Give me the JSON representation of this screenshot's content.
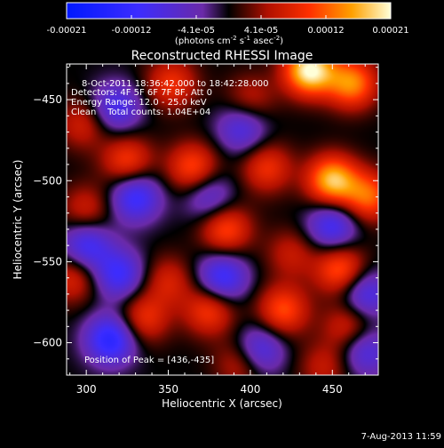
{
  "chart_data": {
    "type": "heatmap",
    "title": "Reconstructed RHESSI Image",
    "xlabel": "Heliocentric X (arcsec)",
    "ylabel": "Heliocentric Y (arcsec)",
    "xlim": [
      288,
      478
    ],
    "ylim": [
      -620,
      -428
    ],
    "xticks": [
      300,
      350,
      400,
      450
    ],
    "yticks": [
      -450,
      -500,
      -550,
      -600
    ],
    "colorbar": {
      "ticks": [
        "-0.00021",
        "-0.00012",
        "-4.1e-05",
        "4.1e-05",
        "0.00012",
        "0.00021"
      ],
      "label_parts": [
        "(photons cm",
        "-2",
        " s",
        "-1",
        " asec",
        "-2",
        ")"
      ],
      "range": [
        -0.00021,
        0.00021
      ]
    },
    "annotations": [
      "8-Oct-2011 18:36:42.000 to 18:42:28.000",
      "Detectors: 4F 5F 6F 7F 8F, Att 0",
      "Energy Range: 12.0 - 25.0 keV",
      "Clean    Total counts: 1.04E+04"
    ],
    "peak_label": "Position of Peak = [436,-435]",
    "peak": [
      436,
      -435
    ],
    "footer_date": "7-Aug-2013 11:59",
    "sources": [
      {
        "x": 436,
        "y": -432,
        "v": 1.0
      },
      {
        "x": 462,
        "y": -440,
        "v": 0.7
      },
      {
        "x": 352,
        "y": -440,
        "v": 0.45
      },
      {
        "x": 298,
        "y": -465,
        "v": 0.35
      },
      {
        "x": 400,
        "y": -450,
        "v": 0.3
      },
      {
        "x": 325,
        "y": -488,
        "v": 0.5
      },
      {
        "x": 365,
        "y": -492,
        "v": 0.55
      },
      {
        "x": 410,
        "y": -492,
        "v": 0.45
      },
      {
        "x": 450,
        "y": -500,
        "v": 0.85
      },
      {
        "x": 472,
        "y": -510,
        "v": 0.6
      },
      {
        "x": 300,
        "y": -518,
        "v": 0.35
      },
      {
        "x": 385,
        "y": -530,
        "v": 0.55
      },
      {
        "x": 425,
        "y": -545,
        "v": 0.3
      },
      {
        "x": 292,
        "y": -560,
        "v": 0.4
      },
      {
        "x": 350,
        "y": -562,
        "v": 0.35
      },
      {
        "x": 455,
        "y": -555,
        "v": 0.6
      },
      {
        "x": 335,
        "y": -585,
        "v": 0.45
      },
      {
        "x": 375,
        "y": -580,
        "v": 0.5
      },
      {
        "x": 420,
        "y": -580,
        "v": 0.55
      },
      {
        "x": 460,
        "y": -590,
        "v": 0.4
      },
      {
        "x": 395,
        "y": -612,
        "v": 0.4
      },
      {
        "x": 445,
        "y": -615,
        "v": 0.3
      },
      {
        "x": 318,
        "y": -455,
        "v": -0.5
      },
      {
        "x": 395,
        "y": -468,
        "v": -0.45
      },
      {
        "x": 330,
        "y": -510,
        "v": -0.6
      },
      {
        "x": 300,
        "y": -540,
        "v": -0.55
      },
      {
        "x": 375,
        "y": -510,
        "v": -0.4
      },
      {
        "x": 450,
        "y": -528,
        "v": -0.55
      },
      {
        "x": 383,
        "y": -560,
        "v": -0.6
      },
      {
        "x": 320,
        "y": -558,
        "v": -0.55
      },
      {
        "x": 470,
        "y": -570,
        "v": -0.5
      },
      {
        "x": 315,
        "y": -598,
        "v": -0.7
      },
      {
        "x": 405,
        "y": -605,
        "v": -0.55
      },
      {
        "x": 470,
        "y": -605,
        "v": -0.45
      }
    ]
  }
}
